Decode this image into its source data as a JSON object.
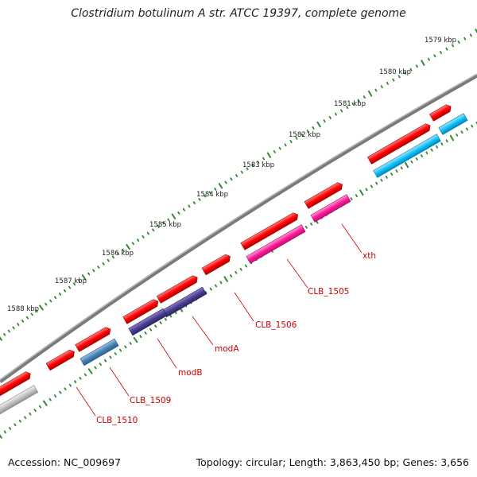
{
  "title": "Clostridium botulinum A str. ATCC 19397, complete genome",
  "footer": {
    "accession": "Accession: NC_009697",
    "summary": "Topology: circular; Length: 3,863,450 bp; Genes: 3,656"
  },
  "scale_labels": [
    "1579 kbp",
    "1580 kbp",
    "1581 kbp",
    "1582 kbp",
    "1583 kbp",
    "1584 kbp",
    "1585 kbp",
    "1586 kbp",
    "1587 kbp",
    "1588 kbp"
  ],
  "gene_labels": [
    "xth",
    "CLB_1505",
    "CLB_1506",
    "modA",
    "modB",
    "CLB_1509",
    "CLB_1510"
  ],
  "colors": {
    "backbone": "#888888",
    "ticks": "#2e8b2e",
    "cds_red": "#e60000",
    "cds_pink": "#ff1493",
    "cds_cyan": "#00bfff",
    "cds_purple": "#483d8b",
    "cds_steel": "#4682b4",
    "cds_gray": "#bbbbbb",
    "label": "#cc0000"
  }
}
